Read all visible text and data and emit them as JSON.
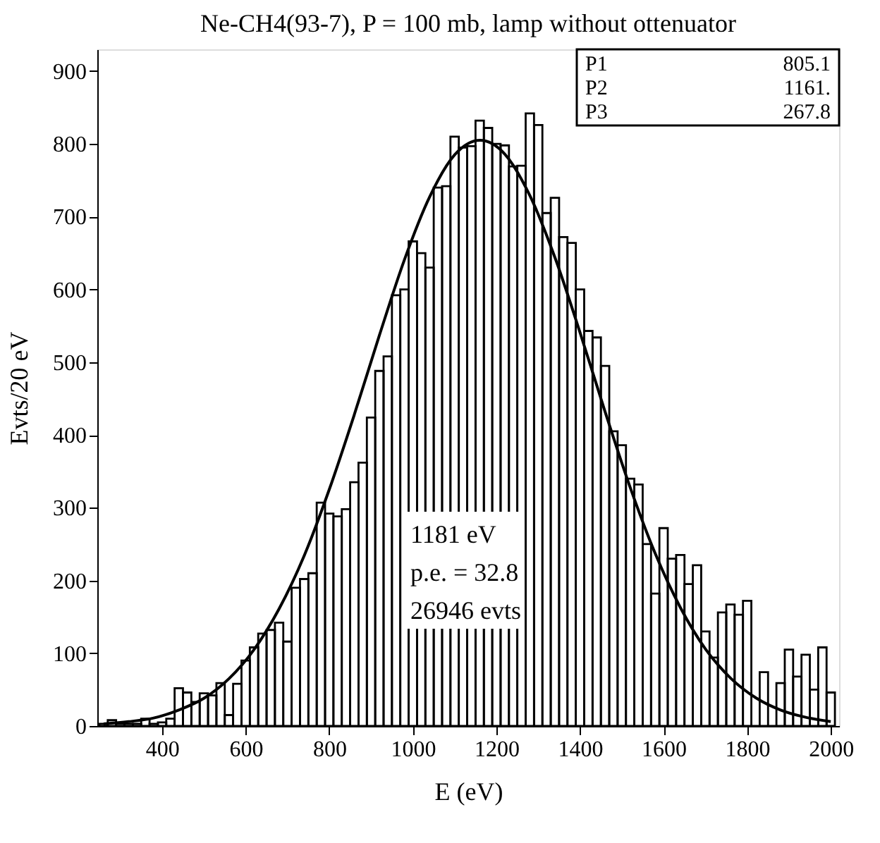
{
  "chart_data": {
    "type": "histogram",
    "title": "Ne-CH4(93-7), P = 100 mb, lamp without ottenuator",
    "xlabel": "E (eV)",
    "ylabel": "Evts/20 eV",
    "bins": [
      250,
      270,
      290,
      310,
      330,
      350,
      370,
      390,
      410,
      430,
      450,
      470,
      490,
      510,
      530,
      550,
      570,
      590,
      610,
      630,
      650,
      670,
      690,
      710,
      730,
      750,
      770,
      790,
      810,
      830,
      850,
      870,
      890,
      910,
      930,
      950,
      970,
      990,
      1010,
      1030,
      1050,
      1070,
      1090,
      1110,
      1130,
      1150,
      1170,
      1190,
      1210,
      1230,
      1250,
      1270,
      1290,
      1310,
      1330,
      1350,
      1370,
      1390,
      1410,
      1430,
      1450,
      1470,
      1490,
      1510,
      1530,
      1550,
      1570,
      1590,
      1610,
      1630,
      1650,
      1670,
      1690,
      1710,
      1730,
      1750,
      1770,
      1790,
      1810,
      1830,
      1850,
      1870,
      1890,
      1910,
      1930,
      1950,
      1970,
      1990,
      2010
    ],
    "series": [
      {
        "color": "#000000",
        "values": [
          3,
          8,
          3,
          3,
          3,
          10,
          3,
          5,
          10,
          52,
          46,
          33,
          45,
          42,
          59,
          15,
          58,
          90,
          108,
          127,
          132,
          142,
          116,
          190,
          202,
          210,
          307,
          292,
          288,
          298,
          335,
          362,
          424,
          488,
          508,
          592,
          600,
          666,
          650,
          630,
          740,
          742,
          810,
          795,
          797,
          832,
          822,
          800,
          798,
          769,
          770,
          842,
          826,
          705,
          726,
          672,
          664,
          600,
          543,
          534,
          495,
          405,
          386,
          340,
          332,
          250,
          182,
          272,
          230,
          235,
          195,
          221,
          130,
          94,
          156,
          167,
          153,
          172,
          0,
          74,
          0,
          59,
          105,
          68,
          98,
          50,
          108,
          46
        ]
      },
      {
        "type": "line",
        "color": "#000000",
        "x": [
          260,
          320,
          380,
          440,
          500,
          560,
          620,
          680,
          740,
          800,
          860,
          920,
          980,
          1040,
          1100,
          1161,
          1220,
          1280,
          1340,
          1400,
          1460,
          1520,
          1580,
          1640,
          1700,
          1760,
          1820,
          1880,
          1940,
          2000
        ],
        "values": [
          3,
          6,
          11,
          22,
          38,
          65,
          105,
          161,
          234,
          325,
          428,
          537,
          641,
          727,
          785,
          805,
          786,
          729,
          644,
          541,
          432,
          328,
          237,
          163,
          106,
          66,
          39,
          22,
          12,
          6
        ]
      }
    ],
    "xlim": [
      245,
      2020
    ],
    "ylim": [
      0,
      930
    ],
    "xticks": [
      400,
      600,
      800,
      1000,
      1200,
      1400,
      1600,
      1800,
      2000
    ],
    "yticks": [
      0,
      100,
      200,
      300,
      400,
      500,
      600,
      700,
      800,
      900
    ],
    "grid": false,
    "annotations": [
      "1181 eV",
      "p.e. = 32.8",
      "26946 evts",
      "P1",
      "805.1",
      "P2",
      "1161.",
      "P3",
      "267.8"
    ]
  }
}
